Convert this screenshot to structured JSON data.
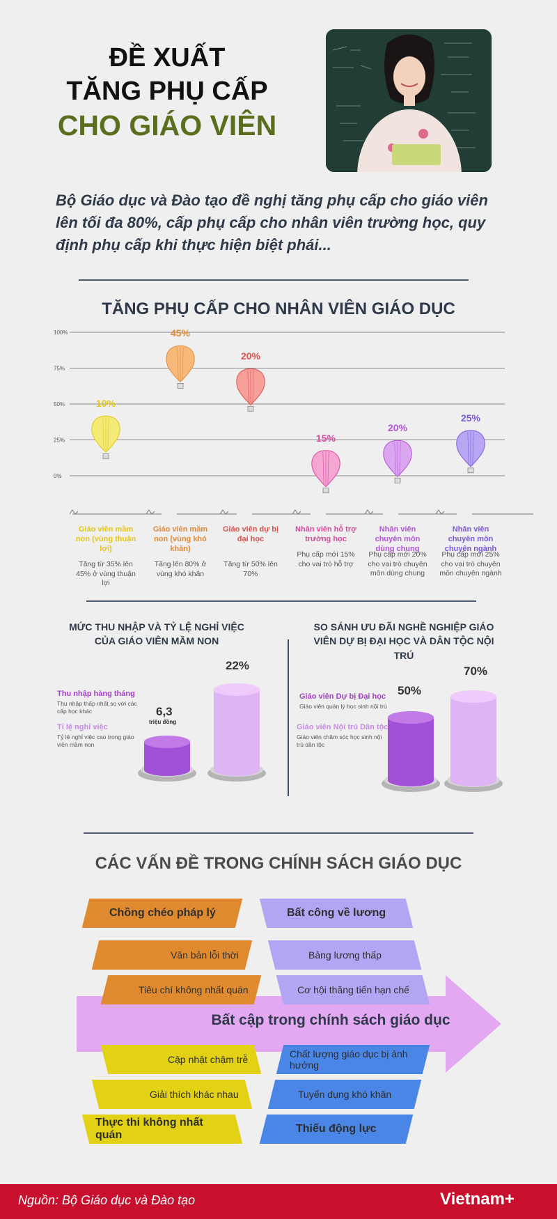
{
  "header": {
    "title_line1": "ĐỀ XUẤT",
    "title_line2": "TĂNG PHỤ CẤP",
    "title_line3": "CHO GIÁO VIÊN",
    "lead": "Bộ Giáo dục và Đào tạo đề nghị tăng phụ cấp cho giáo viên lên tối đa 80%, cấp phụ cấp cho nhân viên trường học, quy định phụ cấp khi thực hiện biệt phái..."
  },
  "section1": {
    "title": "TĂNG PHỤ CẤP CHO NHÂN VIÊN GIÁO DỤC",
    "axis_ticks": [
      "100%",
      "75%",
      "50%",
      "25%",
      "0%"
    ],
    "items": [
      {
        "label": "Giáo viên mầm non (vùng thuận lợi)",
        "desc": "Tăng từ 35% lên 45% ở vùng thuận lợi",
        "percent": "10%",
        "level": 0.29,
        "color": "#e6c619",
        "fill": "#f4ea76"
      },
      {
        "label": "Giáo viên mầm non (vùng khó khăn)",
        "desc": "Tăng lên 80% ở vùng khó khăn",
        "percent": "45%",
        "level": 0.78,
        "color": "#e08a3a",
        "fill": "#f7b97a"
      },
      {
        "label": "Giáo viên dự bị đại học",
        "desc": "Tăng từ 50% lên 70%",
        "percent": "20%",
        "level": 0.62,
        "color": "#d9534f",
        "fill": "#f7a09a"
      },
      {
        "label": "Nhân viên hỗ trợ trường học",
        "desc": "Phụ cấp mới 15% cho vai trò hỗ trợ",
        "percent": "15%",
        "level": 0.05,
        "color": "#d94aa0",
        "fill": "#f5a6d2"
      },
      {
        "label": "Nhân viên chuyên môn dùng chung",
        "desc": "Phụ cấp mới 20% cho vai trò chuyên môn dùng chung",
        "percent": "20%",
        "level": 0.12,
        "color": "#b155d6",
        "fill": "#dba6f0"
      },
      {
        "label": "Nhân viên chuyên môn chuyên ngành",
        "desc": "Phụ cấp mới 25% cho vai trò chuyên môn chuyên ngành",
        "percent": "25%",
        "level": 0.19,
        "color": "#7a5ad9",
        "fill": "#b9a7f3"
      }
    ]
  },
  "section2_left": {
    "title": "MỨC THU NHẬP VÀ TỶ LỆ NGHỈ VIỆC CỦA GIÁO VIÊN MẦM NON",
    "legend1_title": "Thu nhập hàng tháng",
    "legend1_desc": "Thu nhập thấp nhất so với các cấp học khác",
    "legend2_title": "Tỉ lệ nghỉ việc",
    "legend2_desc": "Tỷ lệ nghỉ việc cao trong giáo viên mầm non",
    "value1": "6,3",
    "value1_unit": "triệu đồng",
    "value2": "22%"
  },
  "section2_right": {
    "title": "SO SÁNH ƯU ĐÃI NGHỀ NGHIỆP GIÁO VIÊN DỰ BỊ ĐẠI HỌC VÀ DÂN TỘC NỘI TRÚ",
    "legend1_title": "Giáo viên Dự bị Đại học",
    "legend1_desc": "Giáo viên quản lý học sinh nội trú",
    "legend2_title": "Giáo viên Nội trú Dân tộc",
    "legend2_desc": "Giáo viên chăm sóc học sinh nội trú dân tộc",
    "value1": "50%",
    "value2": "70%"
  },
  "section3": {
    "title": "CÁC VẤN ĐỀ TRONG CHÍNH SÁCH GIÁO DỤC",
    "arrow_label": "Bất cập trong chính sách giáo dục",
    "top_left": [
      "Chồng chéo pháp lý",
      "Văn bản lỗi thời",
      "Tiêu chí không nhất quán"
    ],
    "top_right": [
      "Bất công về lương",
      "Bảng lương thấp",
      "Cơ hội thăng tiến hạn chế"
    ],
    "bottom_left": [
      "Cập nhật chậm trễ",
      "Giải thích khác nhau",
      "Thực thi không nhất quán"
    ],
    "bottom_right": [
      "Chất lượng giáo dục bị ảnh hưởng",
      "Tuyển dụng khó khăn",
      "Thiếu động lực"
    ]
  },
  "footer": {
    "source": "Nguồn: Bộ Giáo dục và Đào tạo",
    "logo": "Vietnam+"
  }
}
